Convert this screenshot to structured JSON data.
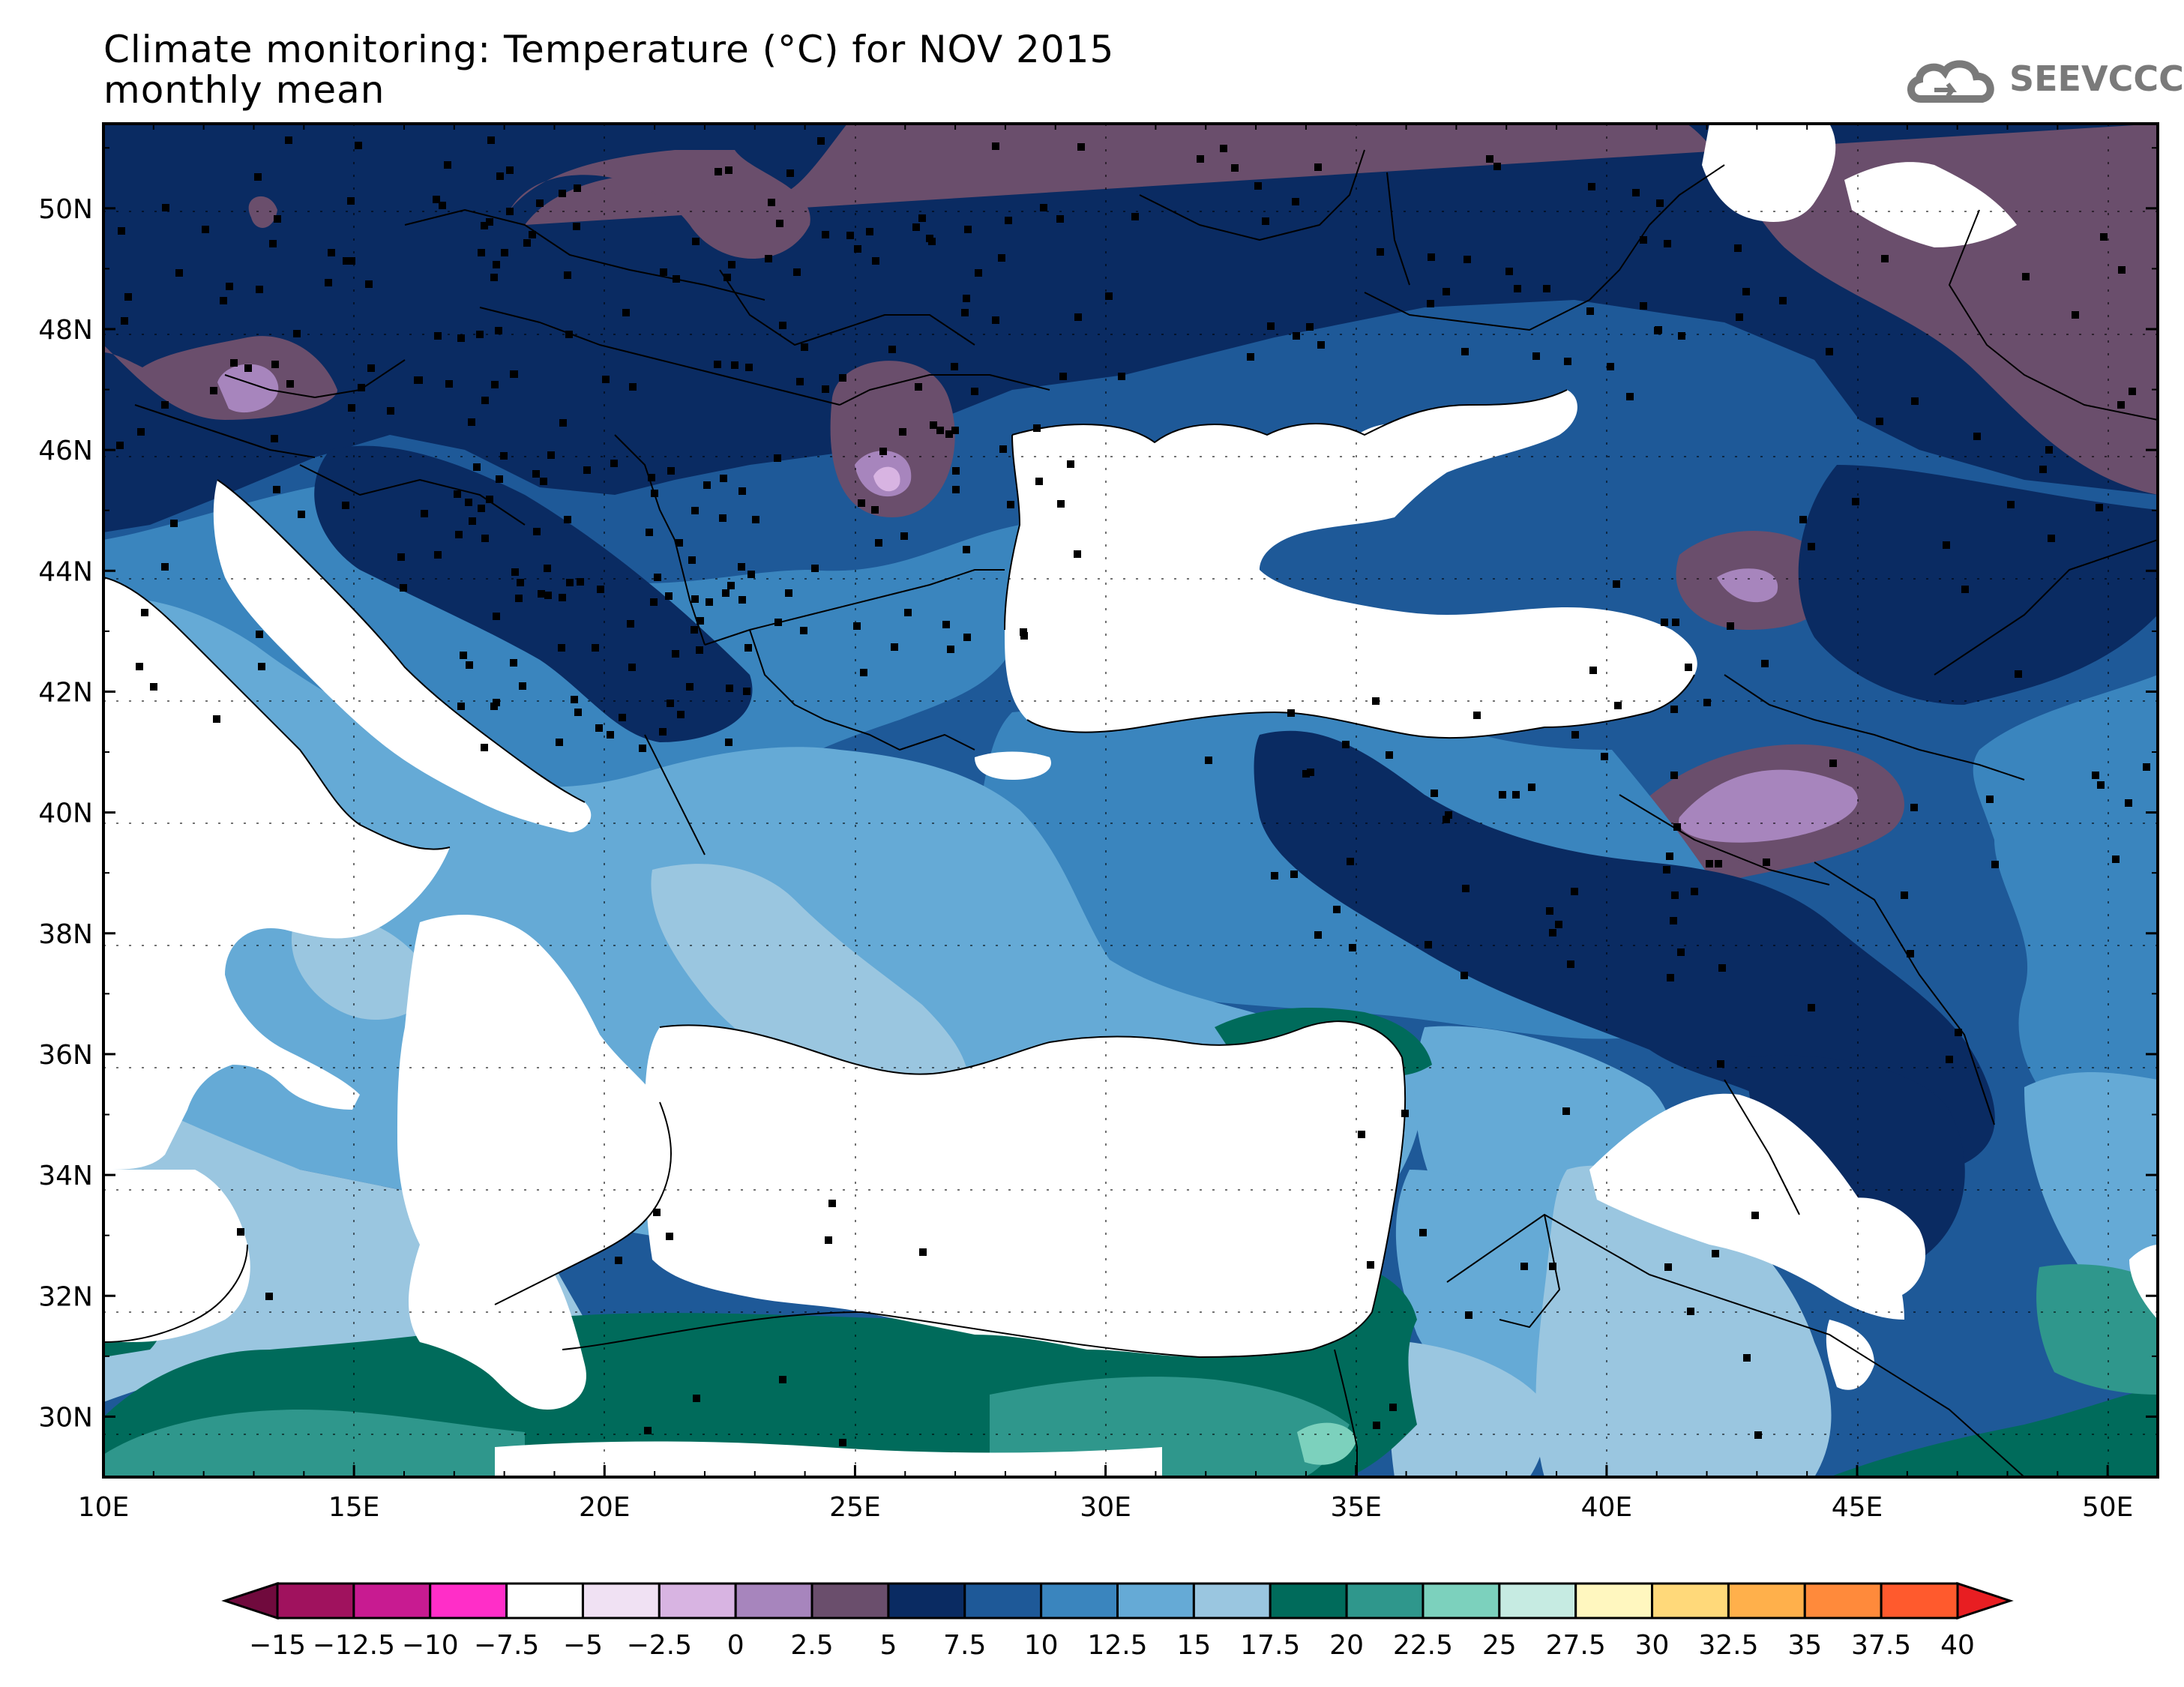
{
  "title": {
    "line1": "Climate monitoring: Temperature (°C) for NOV 2015",
    "line2": "monthly mean"
  },
  "logo": {
    "text": "SEEVCCC",
    "icon": "cloud-icon"
  },
  "map": {
    "lon_ticks": [
      "10E",
      "15E",
      "20E",
      "25E",
      "30E",
      "35E",
      "40E",
      "45E",
      "50E"
    ],
    "lat_ticks": [
      "50N",
      "48N",
      "46N",
      "44N",
      "42N",
      "40N",
      "38N",
      "36N",
      "34N",
      "32N",
      "30N"
    ],
    "lon_range": [
      10,
      51
    ],
    "lat_range": [
      29,
      51.4
    ]
  },
  "colorbar": {
    "labels": [
      "−15",
      "−12.5",
      "−10",
      "−7.5",
      "−5",
      "−2.5",
      "0",
      "2.5",
      "5",
      "7.5",
      "10",
      "12.5",
      "15",
      "17.5",
      "20",
      "22.5",
      "25",
      "27.5",
      "30",
      "32.5",
      "35",
      "37.5",
      "40"
    ],
    "colors": [
      "#a0125e",
      "#c81b91",
      "#ff2ec8",
      "#ffffff",
      "#f0e1f3",
      "#d8b4e2",
      "#a785bd",
      "#6a4e6c",
      "#0a2b62",
      "#1e5998",
      "#3a85be",
      "#65aad6",
      "#9ac6e0",
      "#006b5b",
      "#2f978c",
      "#7cd1bd",
      "#c6ebe2",
      "#fff7bf",
      "#ffd97a",
      "#ffb04b",
      "#ff8a3b",
      "#ff5a2d"
    ],
    "low_color": "#700a3d",
    "high_color": "#e81e22"
  }
}
